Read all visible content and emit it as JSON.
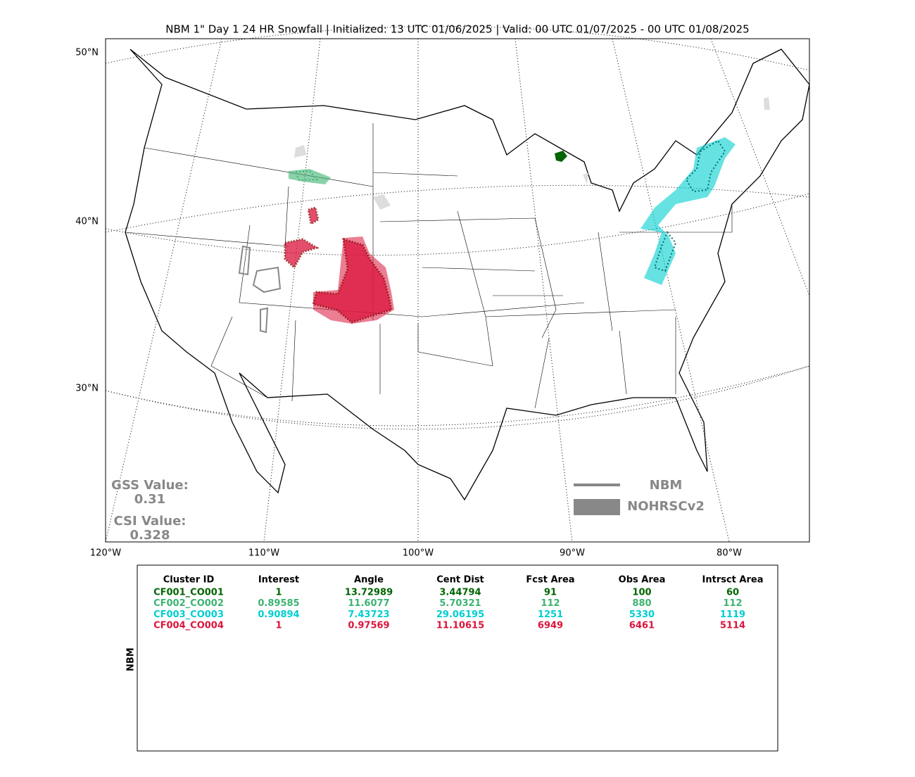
{
  "title": "NBM 1\" Day 1 24 HR Snowfall | Initialized: 13 UTC 01/06/2025 | Valid: 00 UTC 01/07/2025 - 00 UTC 01/08/2025",
  "map": {
    "lat_labels": [
      "50°N",
      "40°N",
      "30°N"
    ],
    "lon_labels": [
      "120°W",
      "110°W",
      "100°W",
      "90°W",
      "80°W"
    ],
    "legend": [
      "NBM",
      "NOHRSCv2"
    ],
    "scores": [
      {
        "label": "GSS Value:",
        "value": "0.31"
      },
      {
        "label": "CSI Value:",
        "value": "0.328"
      }
    ]
  },
  "table": {
    "side_label": "NBM",
    "columns": [
      "Cluster ID",
      "Interest",
      "Angle",
      "Cent Dist",
      "Fcst Area",
      "Obs Area",
      "Intrsct Area"
    ],
    "rows": [
      {
        "color": "#006400",
        "cells": [
          "CF001_CO001",
          "1",
          "13.72989",
          "3.44794",
          "91",
          "100",
          "60"
        ]
      },
      {
        "color": "#3cb371",
        "cells": [
          "CF002_CO002",
          "0.89585",
          "11.6077",
          "5.70321",
          "112",
          "880",
          "112"
        ]
      },
      {
        "color": "#00ced1",
        "cells": [
          "CF003_CO003",
          "0.90894",
          "7.43723",
          "29.06195",
          "1251",
          "5330",
          "1119"
        ]
      },
      {
        "color": "#dc143c",
        "cells": [
          "CF004_CO004",
          "1",
          "0.97569",
          "11.10615",
          "6949",
          "6461",
          "5114"
        ]
      }
    ]
  }
}
